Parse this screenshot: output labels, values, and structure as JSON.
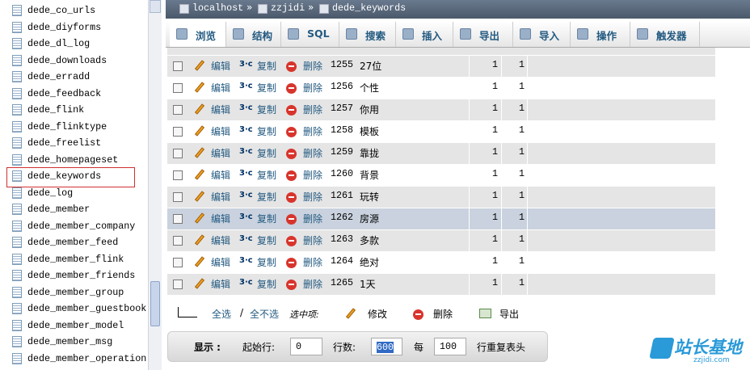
{
  "sidebar": {
    "tables": [
      "dede_co_urls",
      "dede_diyforms",
      "dede_dl_log",
      "dede_downloads",
      "dede_erradd",
      "dede_feedback",
      "dede_flink",
      "dede_flinktype",
      "dede_freelist",
      "dede_homepageset",
      "dede_keywords",
      "dede_log",
      "dede_member",
      "dede_member_company",
      "dede_member_feed",
      "dede_member_flink",
      "dede_member_friends",
      "dede_member_group",
      "dede_member_guestbook",
      "dede_member_model",
      "dede_member_msg",
      "dede_member_operation"
    ]
  },
  "breadcrumb": [
    "localhost",
    "zzjidi",
    "dede_keywords"
  ],
  "tabs": [
    "浏览",
    "结构",
    "SQL",
    "搜索",
    "插入",
    "导出",
    "导入",
    "操作",
    "触发器"
  ],
  "row_actions": [
    "编辑",
    "复制",
    "删除"
  ],
  "table": {
    "rows": [
      [
        1255,
        "27位",
        1,
        1
      ],
      [
        1256,
        "个性",
        1,
        1
      ],
      [
        1257,
        "你用",
        1,
        1
      ],
      [
        1258,
        "模板",
        1,
        1
      ],
      [
        1259,
        "靠拢",
        1,
        1
      ],
      [
        1260,
        "背景",
        1,
        1
      ],
      [
        1261,
        "玩转",
        1,
        1
      ],
      [
        1262,
        "房源",
        1,
        1
      ],
      [
        1263,
        "多款",
        1,
        1
      ],
      [
        1264,
        "绝对",
        1,
        1
      ],
      [
        1265,
        "1天",
        1,
        1
      ]
    ]
  },
  "selection": {
    "check_all": "全选",
    "separator": "/",
    "uncheck_all": "全不选",
    "with_selected": "选中项:",
    "edit": "修改",
    "delete": "删除",
    "export": "导出"
  },
  "display": {
    "label": "显示 :",
    "start_label": "起始行:",
    "start": 0,
    "rows_label": "行数:",
    "rows": 600,
    "every_label": "每",
    "every": 100,
    "repeat_label": "行重复表头"
  },
  "watermark": {
    "name": "站长基地",
    "site": "zzjidi.com"
  }
}
